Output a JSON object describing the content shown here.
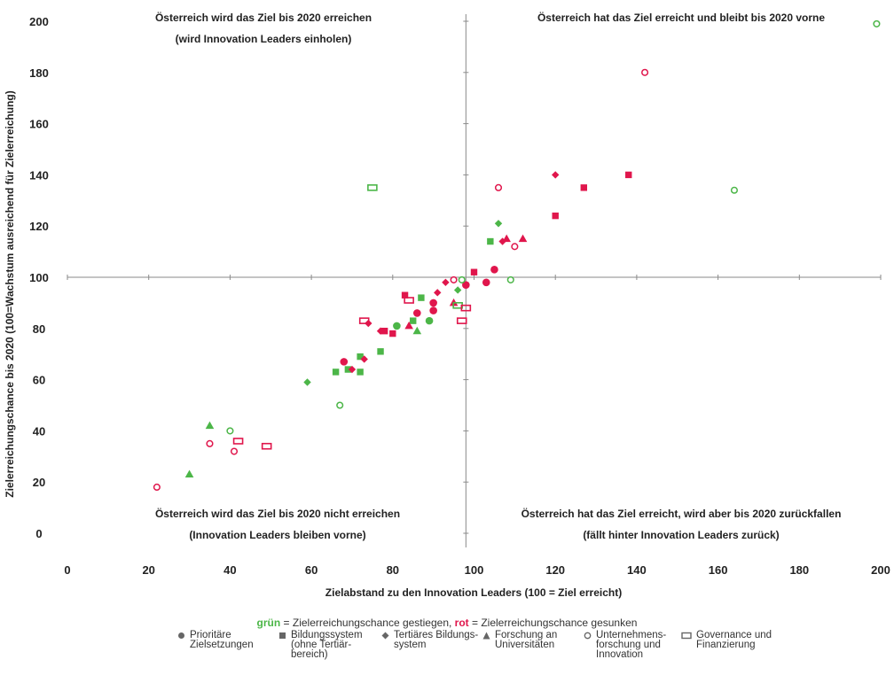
{
  "chart_data": {
    "type": "scatter",
    "xlabel": "Zielabstand zu den Innovation Leaders (100 = Ziel erreicht)",
    "ylabel": "Zielerreichungschance bis 2020 (100=Wachstum ausreichend für Zielerreichung)",
    "xlim": [
      0,
      200
    ],
    "ylim": [
      0,
      200
    ],
    "xticks": [
      "0",
      "20",
      "40",
      "60",
      "80",
      "100",
      "120",
      "140",
      "160",
      "180",
      "200"
    ],
    "yticks": [
      "0",
      "20",
      "40",
      "60",
      "80",
      "100",
      "120",
      "140",
      "160",
      "180",
      "200"
    ],
    "reference_lines": {
      "x": 98,
      "y": 100
    },
    "quadrant_labels": [
      {
        "line1": "Österreich wird das Ziel bis 2020 erreichen",
        "line2": "(wird Innovation Leaders einholen)"
      },
      {
        "line1": "Österreich hat das Ziel erreicht und bleibt bis 2020 vorne",
        "line2": ""
      },
      {
        "line1": "Österreich wird das Ziel bis 2020 nicht erreichen",
        "line2": "(Innovation Leaders bleiben vorne)"
      },
      {
        "line1": "Österreich hat das Ziel erreicht, wird aber bis 2020 zurückfallen",
        "line2": "(fällt hinter Innovation Leaders zurück)"
      }
    ],
    "colors": {
      "green": "#4cb648",
      "red": "#e0164c"
    },
    "series": [
      {
        "name": "Prioritäre Zielsetzungen",
        "marker": "circle-filled",
        "points": [
          {
            "x": 68,
            "y": 67,
            "c": "red"
          },
          {
            "x": 81,
            "y": 81,
            "c": "green"
          },
          {
            "x": 86,
            "y": 86,
            "c": "red"
          },
          {
            "x": 89,
            "y": 83,
            "c": "green"
          },
          {
            "x": 90,
            "y": 87,
            "c": "red"
          },
          {
            "x": 90,
            "y": 90,
            "c": "red"
          },
          {
            "x": 98,
            "y": 97,
            "c": "red"
          },
          {
            "x": 103,
            "y": 98,
            "c": "red"
          },
          {
            "x": 105,
            "y": 103,
            "c": "red"
          }
        ]
      },
      {
        "name": "Bildungssystem (ohne Tertiärbereich)",
        "marker": "square-filled",
        "points": [
          {
            "x": 66,
            "y": 63,
            "c": "green"
          },
          {
            "x": 69,
            "y": 64,
            "c": "green"
          },
          {
            "x": 72,
            "y": 63,
            "c": "green"
          },
          {
            "x": 72,
            "y": 69,
            "c": "green"
          },
          {
            "x": 77,
            "y": 71,
            "c": "green"
          },
          {
            "x": 78,
            "y": 79,
            "c": "red"
          },
          {
            "x": 80,
            "y": 78,
            "c": "red"
          },
          {
            "x": 83,
            "y": 93,
            "c": "red"
          },
          {
            "x": 85,
            "y": 83,
            "c": "green"
          },
          {
            "x": 87,
            "y": 92,
            "c": "green"
          },
          {
            "x": 100,
            "y": 102,
            "c": "red"
          },
          {
            "x": 104,
            "y": 114,
            "c": "green"
          },
          {
            "x": 120,
            "y": 124,
            "c": "red"
          },
          {
            "x": 127,
            "y": 135,
            "c": "red"
          },
          {
            "x": 138,
            "y": 140,
            "c": "red"
          }
        ]
      },
      {
        "name": "Tertiäres Bildungssystem",
        "marker": "diamond-filled",
        "points": [
          {
            "x": 59,
            "y": 59,
            "c": "green"
          },
          {
            "x": 70,
            "y": 64,
            "c": "red"
          },
          {
            "x": 73,
            "y": 68,
            "c": "red"
          },
          {
            "x": 74,
            "y": 82,
            "c": "red"
          },
          {
            "x": 77,
            "y": 79,
            "c": "red"
          },
          {
            "x": 91,
            "y": 94,
            "c": "red"
          },
          {
            "x": 93,
            "y": 98,
            "c": "red"
          },
          {
            "x": 96,
            "y": 95,
            "c": "green"
          },
          {
            "x": 106,
            "y": 121,
            "c": "green"
          },
          {
            "x": 107,
            "y": 114,
            "c": "red"
          },
          {
            "x": 120,
            "y": 140,
            "c": "red"
          }
        ]
      },
      {
        "name": "Forschung an Universitäten",
        "marker": "triangle-filled",
        "points": [
          {
            "x": 30,
            "y": 23,
            "c": "green"
          },
          {
            "x": 35,
            "y": 42,
            "c": "green"
          },
          {
            "x": 84,
            "y": 81,
            "c": "red"
          },
          {
            "x": 86,
            "y": 79,
            "c": "green"
          },
          {
            "x": 95,
            "y": 90,
            "c": "red"
          },
          {
            "x": 108,
            "y": 115,
            "c": "red"
          },
          {
            "x": 112,
            "y": 115,
            "c": "red"
          }
        ]
      },
      {
        "name": "Unternehmensforschung und Innovation",
        "marker": "circle-open",
        "points": [
          {
            "x": 22,
            "y": 18,
            "c": "red"
          },
          {
            "x": 35,
            "y": 35,
            "c": "red"
          },
          {
            "x": 40,
            "y": 40,
            "c": "green"
          },
          {
            "x": 41,
            "y": 32,
            "c": "red"
          },
          {
            "x": 67,
            "y": 50,
            "c": "green"
          },
          {
            "x": 95,
            "y": 99,
            "c": "red"
          },
          {
            "x": 97,
            "y": 99,
            "c": "green"
          },
          {
            "x": 106,
            "y": 135,
            "c": "red"
          },
          {
            "x": 109,
            "y": 99,
            "c": "green"
          },
          {
            "x": 110,
            "y": 112,
            "c": "red"
          },
          {
            "x": 142,
            "y": 180,
            "c": "red"
          },
          {
            "x": 164,
            "y": 134,
            "c": "green"
          },
          {
            "x": 199,
            "y": 199,
            "c": "green"
          }
        ]
      },
      {
        "name": "Governance und Finanzierung",
        "marker": "rect-open",
        "points": [
          {
            "x": 42,
            "y": 36,
            "c": "red"
          },
          {
            "x": 49,
            "y": 34,
            "c": "red"
          },
          {
            "x": 73,
            "y": 83,
            "c": "red"
          },
          {
            "x": 75,
            "y": 135,
            "c": "green"
          },
          {
            "x": 84,
            "y": 91,
            "c": "red"
          },
          {
            "x": 96,
            "y": 89,
            "c": "green"
          },
          {
            "x": 97,
            "y": 83,
            "c": "red"
          },
          {
            "x": 98,
            "y": 88,
            "c": "red"
          }
        ]
      }
    ]
  },
  "legend": {
    "note_green_word": "grün",
    "note_middle": " = Zielerreichungschance gestiegen, ",
    "note_red_word": "rot",
    "note_end": " = Zielerreichungschance gesunken",
    "items": [
      {
        "marker": "circle-filled",
        "label": "Prioritäre\nZielsetzungen"
      },
      {
        "marker": "square-filled",
        "label": "Bildungssystem\n(ohne Tertiär-\nbereich)"
      },
      {
        "marker": "diamond-filled",
        "label": "Tertiäres Bildungs-\nsystem"
      },
      {
        "marker": "triangle-filled",
        "label": "Forschung an\nUniversitäten"
      },
      {
        "marker": "circle-open",
        "label": "Unternehmens-\nforschung und\nInnovation"
      },
      {
        "marker": "rect-open",
        "label": "Governance und\nFinanzierung"
      }
    ]
  }
}
